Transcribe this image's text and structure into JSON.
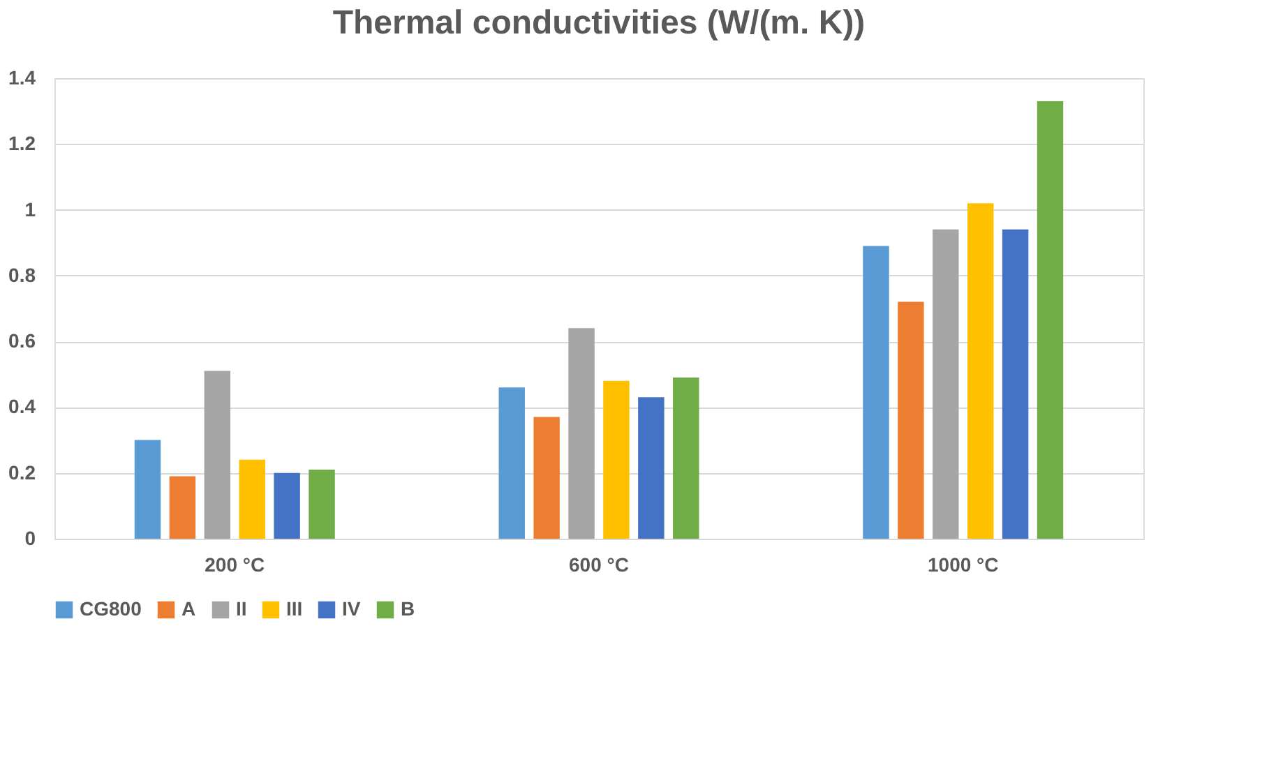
{
  "chart_data": {
    "type": "bar",
    "title": "Thermal conductivities (W/(m. K))",
    "categories": [
      "200 °C",
      "600 °C",
      "1000 °C"
    ],
    "series": [
      {
        "name": "CG800",
        "color": "#5b9bd5",
        "values": [
          0.3,
          0.46,
          0.89
        ]
      },
      {
        "name": "A",
        "color": "#ed7d31",
        "values": [
          0.19,
          0.37,
          0.72
        ]
      },
      {
        "name": "II",
        "color": "#a5a5a5",
        "values": [
          0.51,
          0.64,
          0.94
        ]
      },
      {
        "name": "III",
        "color": "#ffc000",
        "values": [
          0.24,
          0.48,
          1.02
        ]
      },
      {
        "name": "IV",
        "color": "#4472c4",
        "values": [
          0.2,
          0.43,
          0.94
        ]
      },
      {
        "name": "B",
        "color": "#70ad47",
        "values": [
          0.21,
          0.49,
          1.33
        ]
      }
    ],
    "ylim": [
      0,
      1.4
    ],
    "yticks": [
      0,
      0.2,
      0.4,
      0.6,
      0.8,
      1,
      1.2,
      1.4
    ],
    "grid": "y",
    "legend": "bottom"
  }
}
